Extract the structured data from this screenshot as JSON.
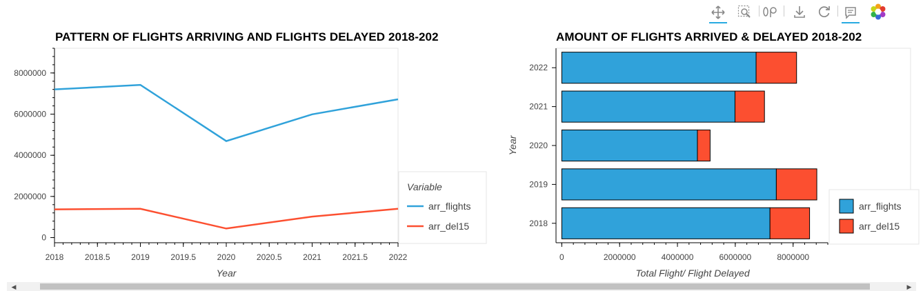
{
  "toolbar": {
    "tools": [
      {
        "name": "pan-tool",
        "icon": "move-arrows-icon",
        "active": true
      },
      {
        "name": "box-zoom-tool",
        "icon": "box-zoom-icon",
        "active": false
      },
      {
        "name": "wheel-zoom-tool",
        "icon": "wheel-zoom-icon",
        "active": false
      },
      {
        "name": "save-tool",
        "icon": "download-icon",
        "active": false
      },
      {
        "name": "reset-tool",
        "icon": "refresh-icon",
        "active": false
      },
      {
        "name": "hover-tool",
        "icon": "comment-icon",
        "active": true
      },
      {
        "name": "bokeh-logo",
        "icon": "bokeh-logo-icon",
        "active": false
      }
    ]
  },
  "colors": {
    "arr_flights": "#30a2da",
    "arr_del15": "#fc4f30"
  },
  "chart_data": [
    {
      "type": "line",
      "title": "PATTERN OF FLIGHTS ARRIVING AND FLIGHTS DELAYED 2018-202",
      "xlabel": "Year",
      "ylabel": "",
      "x": [
        2018,
        2019,
        2020,
        2021,
        2022
      ],
      "xlim": [
        2018,
        2022
      ],
      "ylim": [
        -250000,
        9200000
      ],
      "x_ticks": [
        "2018",
        "2018.5",
        "2019",
        "2019.5",
        "2020",
        "2020.5",
        "2021",
        "2021.5",
        "2022"
      ],
      "y_ticks": [
        "0",
        "2000000",
        "4000000",
        "6000000",
        "8000000"
      ],
      "series": [
        {
          "name": "arr_flights",
          "values": [
            7200000,
            7420000,
            4690000,
            5990000,
            6720000
          ]
        },
        {
          "name": "arr_del15",
          "values": [
            1370000,
            1400000,
            440000,
            1020000,
            1400000
          ]
        }
      ],
      "legend": {
        "title": "Variable",
        "position": "right"
      }
    },
    {
      "type": "bar",
      "orientation": "horizontal",
      "stacked": true,
      "title": "AMOUNT OF FLIGHTS ARRIVED & DELAYED 2018-202",
      "xlabel": "Total Flight/ Flight Delayed",
      "ylabel": "Year",
      "categories": [
        "2018",
        "2019",
        "2020",
        "2021",
        "2022"
      ],
      "xlim": [
        -200000,
        9200000
      ],
      "x_ticks": [
        "0",
        "2000000",
        "4000000",
        "6000000",
        "8000000"
      ],
      "series": [
        {
          "name": "arr_flights",
          "values": [
            7200000,
            7420000,
            4690000,
            5990000,
            6720000
          ]
        },
        {
          "name": "arr_del15",
          "values": [
            1370000,
            1400000,
            440000,
            1020000,
            1400000
          ]
        }
      ],
      "legend": {
        "position": "right"
      }
    }
  ]
}
